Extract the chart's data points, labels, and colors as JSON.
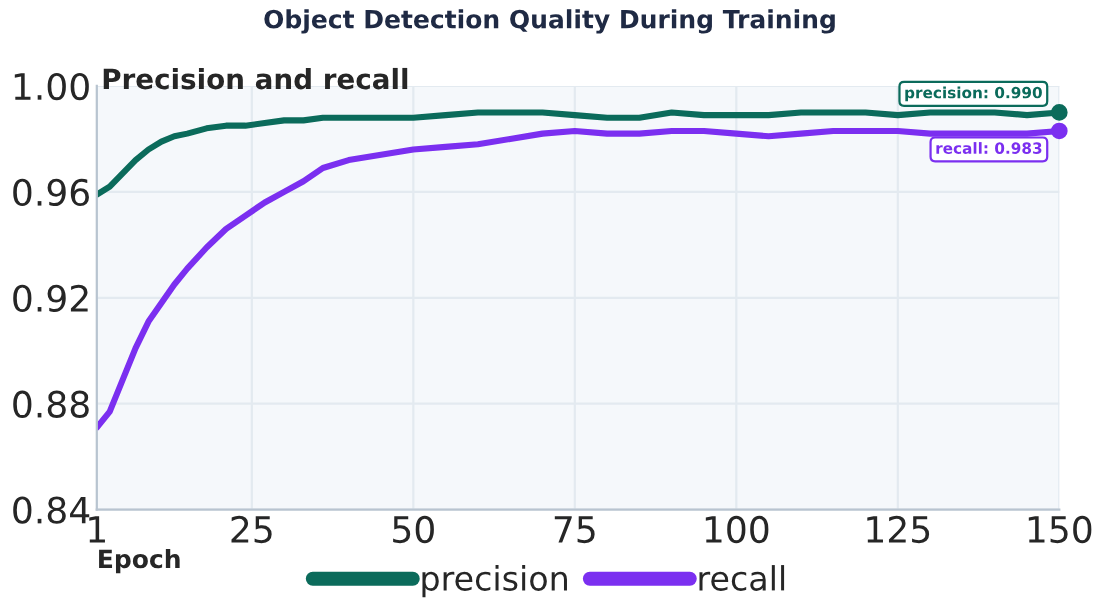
{
  "chart_data": {
    "type": "line",
    "title": "Object Detection Quality During Training",
    "subtitle": "Precision and recall",
    "xlabel": "Epoch",
    "series": [
      {
        "name": "precision",
        "color": "#0b6b5b",
        "x": [
          1,
          3,
          5,
          7,
          9,
          11,
          13,
          15,
          18,
          21,
          24,
          27,
          30,
          33,
          36,
          40,
          45,
          50,
          55,
          60,
          65,
          70,
          75,
          80,
          85,
          90,
          95,
          100,
          105,
          110,
          115,
          120,
          125,
          130,
          135,
          140,
          145,
          150
        ],
        "values": [
          0.959,
          0.962,
          0.967,
          0.972,
          0.976,
          0.979,
          0.981,
          0.982,
          0.984,
          0.985,
          0.985,
          0.986,
          0.987,
          0.987,
          0.988,
          0.988,
          0.988,
          0.988,
          0.989,
          0.99,
          0.99,
          0.99,
          0.989,
          0.988,
          0.988,
          0.99,
          0.989,
          0.989,
          0.989,
          0.99,
          0.99,
          0.99,
          0.989,
          0.99,
          0.99,
          0.99,
          0.989,
          0.99
        ]
      },
      {
        "name": "recall",
        "color": "#7b2ff0",
        "x": [
          1,
          3,
          5,
          7,
          9,
          11,
          13,
          15,
          18,
          21,
          24,
          27,
          30,
          33,
          36,
          40,
          45,
          50,
          55,
          60,
          65,
          70,
          75,
          80,
          85,
          90,
          95,
          100,
          105,
          110,
          115,
          120,
          125,
          130,
          135,
          140,
          145,
          150
        ],
        "values": [
          0.871,
          0.877,
          0.889,
          0.901,
          0.911,
          0.918,
          0.925,
          0.931,
          0.939,
          0.946,
          0.951,
          0.956,
          0.96,
          0.964,
          0.969,
          0.972,
          0.974,
          0.976,
          0.977,
          0.978,
          0.98,
          0.982,
          0.983,
          0.982,
          0.982,
          0.983,
          0.983,
          0.982,
          0.981,
          0.982,
          0.983,
          0.983,
          0.983,
          0.982,
          0.982,
          0.982,
          0.982,
          0.983
        ]
      }
    ],
    "annotations": [
      {
        "text": "precision: 0.990",
        "x": 150,
        "y": 0.99
      },
      {
        "text": "recall: 0.983",
        "x": 150,
        "y": 0.983
      }
    ],
    "xlim": [
      1,
      150
    ],
    "xticks": [
      1,
      25,
      50,
      75,
      100,
      125,
      150
    ],
    "ylim": [
      0.84,
      1.0
    ],
    "yticks": [
      0.84,
      0.88,
      0.92,
      0.96,
      {
        "value": 1.0,
        "label": "1.00"
      }
    ],
    "grid": true,
    "legend": "bottom",
    "marker": "none",
    "line_style": "solid"
  }
}
